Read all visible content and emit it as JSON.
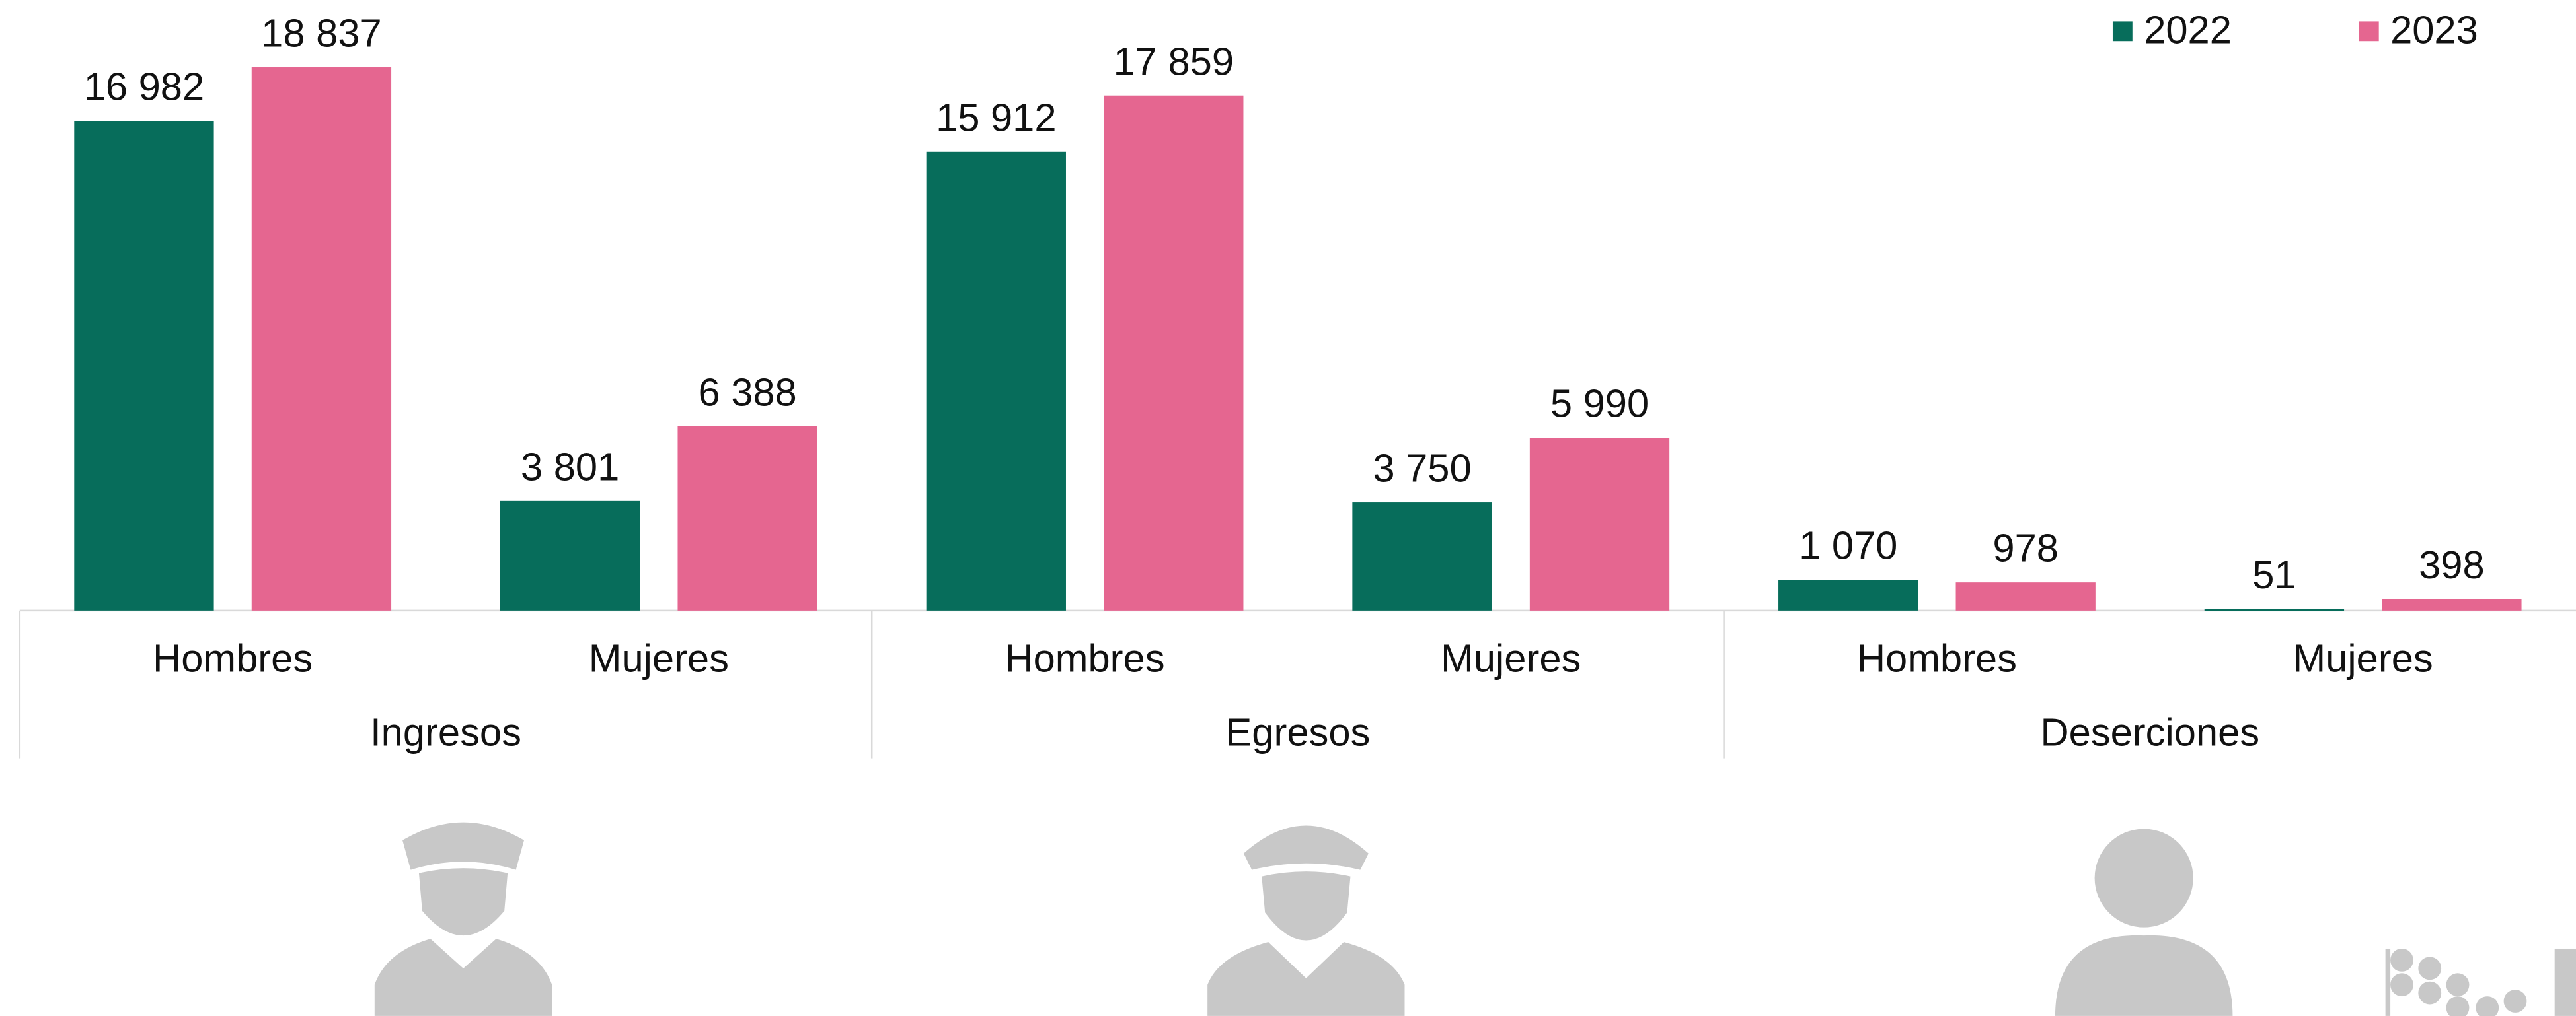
{
  "chart_data": {
    "type": "bar",
    "groups": [
      "Ingresos",
      "Egresos",
      "Deserciones"
    ],
    "categories": [
      "Hombres",
      "Mujeres",
      "Hombres",
      "Mujeres",
      "Hombres",
      "Mujeres"
    ],
    "series": [
      {
        "name": "2022",
        "color": "#076d5b",
        "values": [
          16982,
          3801,
          15912,
          3750,
          1070,
          51
        ],
        "value_labels": [
          "16 982",
          "3 801",
          "15 912",
          "3 750",
          "1 070",
          "51"
        ]
      },
      {
        "name": "2023",
        "color": "#e56690",
        "values": [
          18837,
          6388,
          17859,
          5990,
          978,
          398
        ],
        "value_labels": [
          "18 837",
          "6 388",
          "17 859",
          "5 990",
          "978",
          "398"
        ]
      }
    ],
    "legend": "top-right"
  }
}
